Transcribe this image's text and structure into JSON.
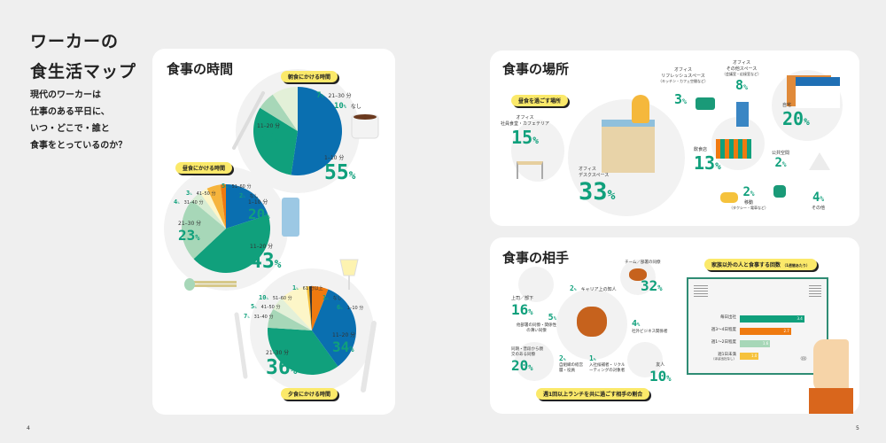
{
  "intro": {
    "title_line1": "ワーカーの",
    "title_line2": "食生活マップ",
    "lead": [
      "現代のワーカーは",
      "仕事のある平日に、",
      "いつ・どこで・誰と",
      "食事をとっているのか？"
    ]
  },
  "page_numbers": {
    "left": "4",
    "right": "5"
  },
  "time_panel": {
    "title": "食事の時間"
  },
  "place_panel": {
    "title": "食事の場所",
    "tag": "昼食を過ごす場所",
    "items": [
      {
        "label1": "オフィス",
        "label2": "社員食堂・カフェテリア",
        "value": "15"
      },
      {
        "label1": "オフィス",
        "label2": "デスクスペース",
        "value": "33"
      },
      {
        "label1": "オフィス",
        "label2": "リフレッシュスペース",
        "note": "（キッチン・カフェ空間など）",
        "value": "3"
      },
      {
        "label1": "オフィス",
        "label2": "その他スペース",
        "note": "（会議室・応接室など）",
        "value": "8"
      },
      {
        "label1": "自宅",
        "value": "20"
      },
      {
        "label1": "飲食店",
        "value": "13"
      },
      {
        "label1": "公共空間",
        "value": "2"
      },
      {
        "label1": "移動",
        "note": "（タクシー・電車など）",
        "value": "2"
      },
      {
        "label1": "その他",
        "value": "4"
      }
    ]
  },
  "partner_panel": {
    "title": "食事の相手",
    "tag": "週1回以上ランチを共に過ごす相手の割合",
    "items": [
      {
        "label": "上司／部下",
        "value": "16"
      },
      {
        "label": "チーム／部署の同僚",
        "value": "32"
      },
      {
        "label": "キャリア上の知人",
        "value": "2"
      },
      {
        "label": "他部署の同僚・関係性の薄い同僚",
        "value": "5"
      },
      {
        "label": "社外ビジネス関係者",
        "value": "4"
      },
      {
        "label": "同期・普段から親交のある同僚",
        "value": "20"
      },
      {
        "label": "自組織の経営層・役員",
        "value": "2"
      },
      {
        "label": "入社候補者・リクルーティングの対象者",
        "value": "1"
      },
      {
        "label": "友人",
        "value": "10"
      }
    ],
    "pct_sign": "%"
  },
  "colors": {
    "green": "#10a07c",
    "blue": "#0a6fb0",
    "orange": "#ef7a10",
    "yellow_tag": "#fbe96a",
    "light_green": "#a7d7b8"
  },
  "chart_data": [
    {
      "type": "pie",
      "title": "朝食にかける時間",
      "slices": [
        {
          "label": "1–10 分",
          "value": 55,
          "color": "#0a6fb0"
        },
        {
          "label": "11–20 分",
          "value": 33,
          "color": "#10a07c"
        },
        {
          "label": "21–30 分",
          "value": 7,
          "color": "#a7d7b8"
        },
        {
          "label": "なし",
          "value": 10,
          "color": "#e3f0d8"
        }
      ]
    },
    {
      "type": "pie",
      "title": "昼食にかける時間",
      "slices": [
        {
          "label": "1–10 分",
          "value": 20,
          "color": "#0a6fb0"
        },
        {
          "label": "11–20 分",
          "value": 43,
          "color": "#10a07c"
        },
        {
          "label": "21–30 分",
          "value": 23,
          "color": "#a7d7b8"
        },
        {
          "label": "31–40 分",
          "value": 4,
          "color": "#d6ecd3"
        },
        {
          "label": "41–50 分",
          "value": 3,
          "color": "#fdf6c8"
        },
        {
          "label": "51–60 分",
          "value": 5,
          "color": "#f6b43c"
        },
        {
          "label": "なし",
          "value": 2,
          "color": "#ef7a10"
        }
      ]
    },
    {
      "type": "pie",
      "title": "夕食にかける時間",
      "slices": [
        {
          "label": "1–10 分",
          "value": 6,
          "color": "#ef7a10"
        },
        {
          "label": "11–20 分",
          "value": 34,
          "color": "#0a6fb0"
        },
        {
          "label": "21–30 分",
          "value": 36,
          "color": "#10a07c"
        },
        {
          "label": "31–40 分",
          "value": 7,
          "color": "#a7d7b8"
        },
        {
          "label": "41–50 分",
          "value": 5,
          "color": "#e3f0d8"
        },
        {
          "label": "51–60 分",
          "value": 10,
          "color": "#fdf6c8"
        },
        {
          "label": "61 分以上",
          "value": 1,
          "color": "#f6c23c"
        },
        {
          "label": "なし",
          "value": 1,
          "color": "#333333"
        }
      ]
    },
    {
      "type": "bar",
      "title": "家族以外の人と食事する回数",
      "subtitle": "（1週間あたり）",
      "unit": "（回）",
      "categories": [
        "毎日出社",
        "週3〜4日程度",
        "週1〜2日程度",
        "週1日未満"
      ],
      "category_notes": [
        "",
        "",
        "",
        "（ほぼ出社なし）"
      ],
      "values": [
        3.4,
        2.7,
        1.6,
        1.0
      ],
      "value_labels": [
        "3.4",
        "2.7",
        "1.6",
        "1.0"
      ],
      "colors": [
        "#10a07c",
        "#ef7a10",
        "#a7d7b8",
        "#f6c23c"
      ],
      "xlim": [
        0,
        3.5
      ]
    }
  ]
}
